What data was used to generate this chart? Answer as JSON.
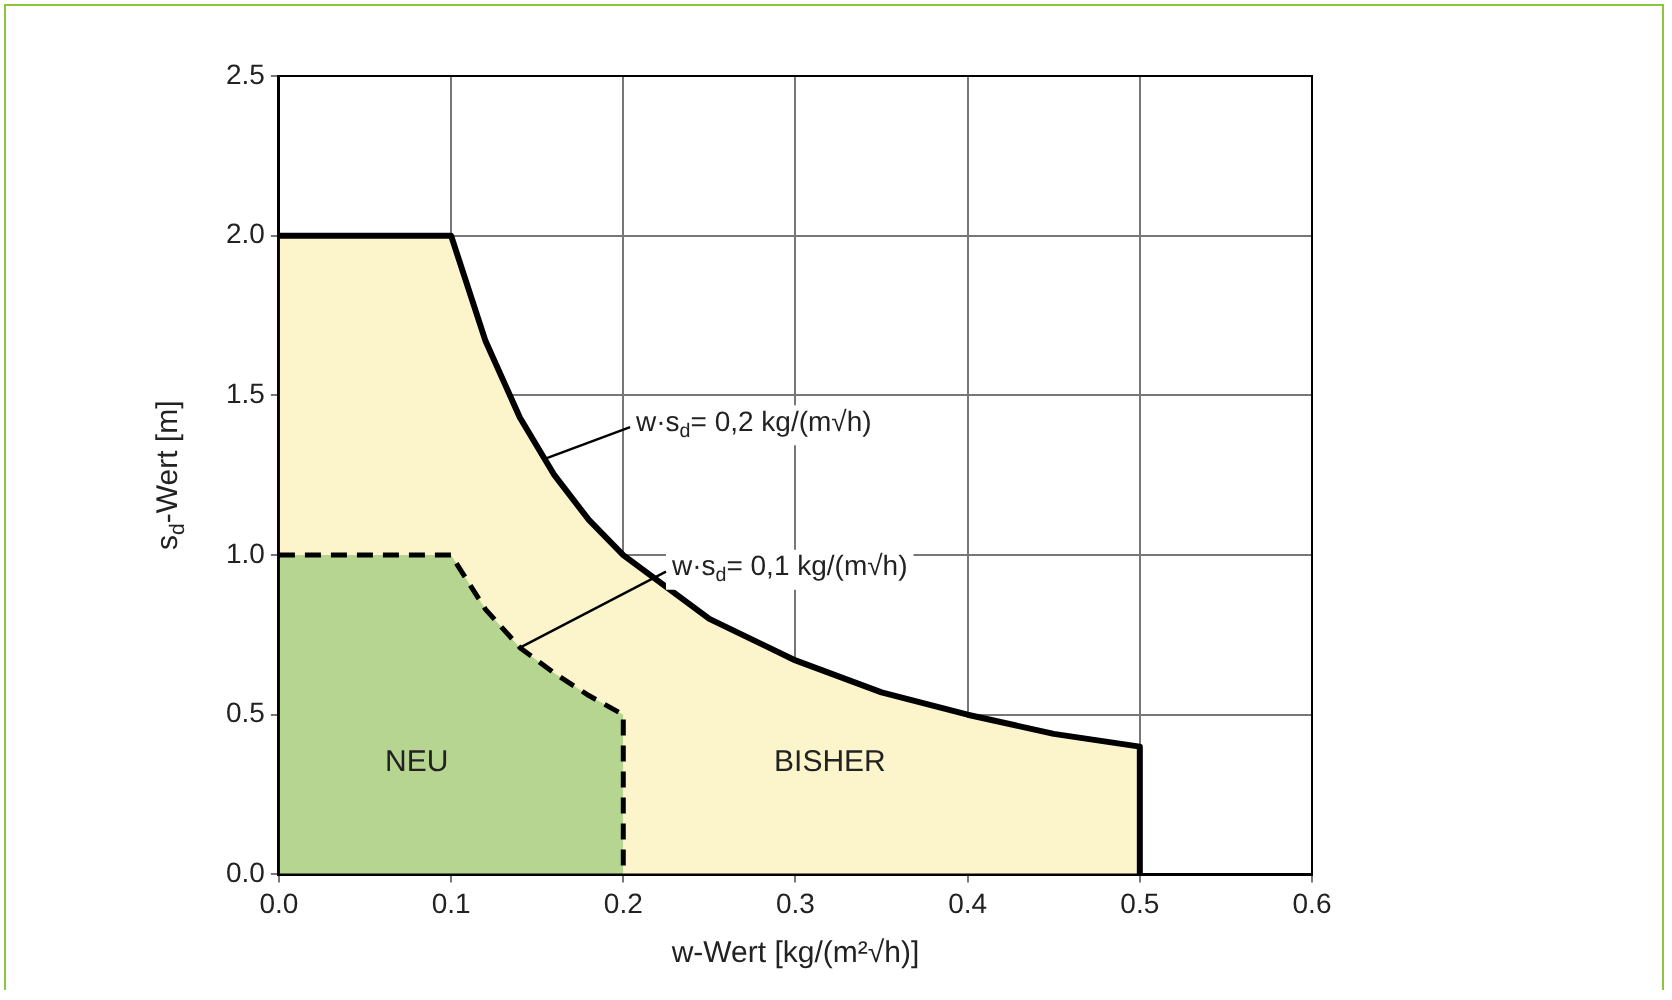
{
  "chart_data": {
    "type": "area",
    "xlabel": "w-Wert [kg/(m²√h)]",
    "ylabel": "s$_{d}$-Wert [m]",
    "xlim": [
      0,
      0.6
    ],
    "ylim": [
      0,
      2.5
    ],
    "xticks": [
      {
        "value": 0,
        "label": "0.0"
      },
      {
        "value": 0.1,
        "label": "0.1"
      },
      {
        "value": 0.2,
        "label": "0.2"
      },
      {
        "value": 0.3,
        "label": "0.3"
      },
      {
        "value": 0.4,
        "label": "0.4"
      },
      {
        "value": 0.5,
        "label": "0.5"
      },
      {
        "value": 0.6,
        "label": "0.6"
      }
    ],
    "yticks": [
      {
        "value": 0,
        "label": "0.0"
      },
      {
        "value": 0.5,
        "label": "0.5"
      },
      {
        "value": 1,
        "label": "1.0"
      },
      {
        "value": 1.5,
        "label": "1.5"
      },
      {
        "value": 2,
        "label": "2.0"
      },
      {
        "value": 2.5,
        "label": "2.5"
      }
    ],
    "grid": true,
    "legend": false,
    "marker": "none",
    "series": [
      {
        "name": "BISHER",
        "color": "#fcf5cc",
        "line_style": "solid",
        "x": [
          0,
          0.1,
          0.12,
          0.14,
          0.16,
          0.18,
          0.2,
          0.25,
          0.3,
          0.35,
          0.4,
          0.45,
          0.5,
          0.5
        ],
        "values": [
          2,
          2,
          1.67,
          1.43,
          1.25,
          1.11,
          1,
          0.8,
          0.67,
          0.57,
          0.5,
          0.44,
          0.4,
          0
        ]
      },
      {
        "name": "NEU",
        "color": "#b6d591",
        "line_style": "dashed",
        "x": [
          0,
          0.1,
          0.12,
          0.14,
          0.16,
          0.18,
          0.2,
          0.2
        ],
        "values": [
          1,
          1,
          0.83,
          0.71,
          0.63,
          0.56,
          0.5,
          0
        ]
      }
    ],
    "annotations": [
      {
        "text": "w·s$_{d}$= 0,2 kg/(m√h)",
        "x": 0.154,
        "y": 1.3
      },
      {
        "text": "w·s$_{d}$= 0,1 kg/(m√h)",
        "x": 0.14,
        "y": 0.71
      }
    ]
  }
}
